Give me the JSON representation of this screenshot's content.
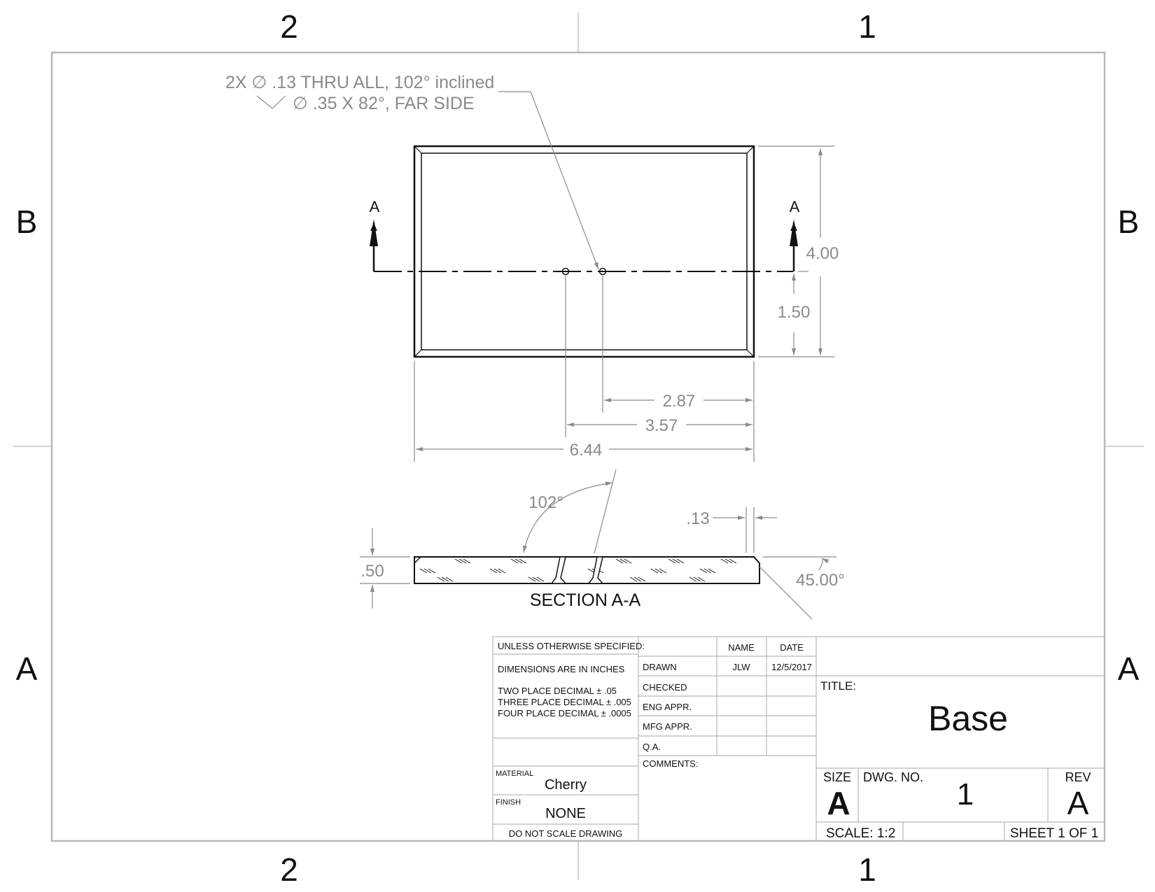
{
  "zones": {
    "top_left": "2",
    "top_right": "1",
    "bottom_left": "2",
    "bottom_right": "1",
    "left_upper": "B",
    "right_upper": "B",
    "left_lower": "A",
    "right_lower": "A"
  },
  "hole_callout": {
    "line1": "2X ∅ .13 THRU ALL, 102° inclined",
    "line2": "∅ .35 X 82°, FAR SIDE"
  },
  "section_marks": {
    "left": "A",
    "right": "A"
  },
  "dimensions": {
    "height": "4.00",
    "hole_y": "1.50",
    "hole1_x": "2.87",
    "hole2_x": "3.57",
    "width": "6.44",
    "angle": "102°",
    "edge": ".13",
    "thickness": ".50",
    "chamfer": "45.00°"
  },
  "section_label": "SECTION A-A",
  "title_block": {
    "unless": "UNLESS OTHERWISE SPECIFIED:",
    "dims_in": "DIMENSIONS ARE IN INCHES",
    "tol1": "TWO PLACE DECIMAL ± .05",
    "tol2": "THREE PLACE DECIMAL  ± .005",
    "tol3": "FOUR PLACE DECIMAL ± .0005",
    "material_label": "MATERIAL",
    "material": "Cherry",
    "finish_label": "FINISH",
    "finish": "NONE",
    "do_not_scale": "DO NOT SCALE DRAWING",
    "name_header": "NAME",
    "date_header": "DATE",
    "rows": [
      "DRAWN",
      "CHECKED",
      "ENG APPR.",
      "MFG APPR.",
      "Q.A."
    ],
    "drawn_name": "JLW",
    "drawn_date": "12/5/2017",
    "comments": "COMMENTS:",
    "title_label": "TITLE:",
    "title": "Base",
    "size_label": "SIZE",
    "size": "A",
    "dwg_label": "DWG.  NO.",
    "dwg_no": "1",
    "rev_label": "REV",
    "rev": "A",
    "scale": "SCALE: 1:2",
    "sheet": "SHEET 1 OF 1"
  }
}
